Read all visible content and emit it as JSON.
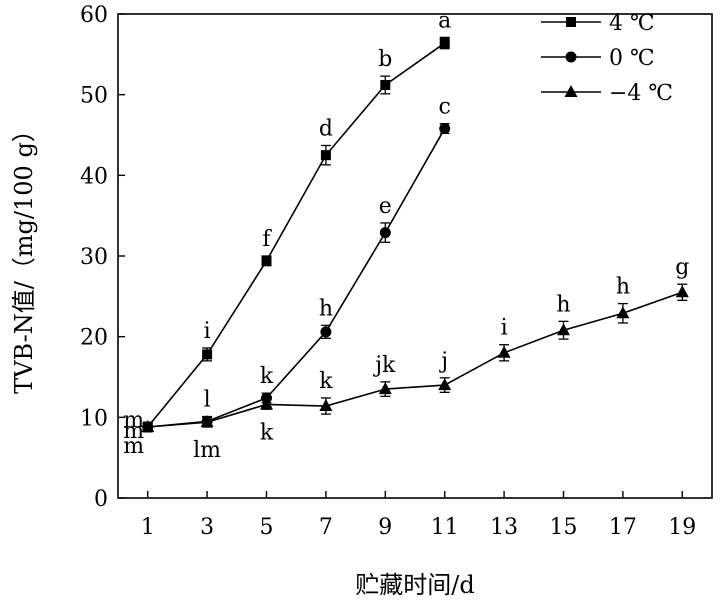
{
  "chart_data": {
    "type": "line",
    "xlabel": "贮藏时间/d",
    "ylabel": "TVB-N值/（mg/100 g）",
    "xlim": [
      0,
      20
    ],
    "ylim": [
      0,
      60
    ],
    "xticks": [
      1,
      3,
      5,
      7,
      9,
      11,
      13,
      15,
      17,
      19
    ],
    "yticks": [
      0,
      10,
      20,
      30,
      40,
      50,
      60
    ],
    "grid": false,
    "legend_position": "top-right",
    "series": [
      {
        "name": "4 ℃",
        "marker": "square",
        "x": [
          1,
          3,
          5,
          7,
          9,
          11
        ],
        "y": [
          8.8,
          17.8,
          29.4,
          42.5,
          51.2,
          56.4
        ],
        "error": [
          0.6,
          0.8,
          0.6,
          1.2,
          1.1,
          0.7
        ],
        "labels": [
          "m",
          "i",
          "f",
          "d",
          "b",
          "a"
        ]
      },
      {
        "name": "0 ℃",
        "marker": "circle",
        "x": [
          1,
          3,
          5,
          7,
          9,
          11
        ],
        "y": [
          8.8,
          9.5,
          12.4,
          20.6,
          32.9,
          45.8
        ],
        "error": [
          0.5,
          0.6,
          0.6,
          0.8,
          1.2,
          0.6
        ],
        "labels": [
          "m",
          "l",
          "k",
          "h",
          "e",
          "c"
        ]
      },
      {
        "name": "−4 ℃",
        "marker": "triangle",
        "x": [
          1,
          3,
          5,
          7,
          9,
          11,
          13,
          15,
          17,
          19
        ],
        "y": [
          8.8,
          9.4,
          11.6,
          11.4,
          13.5,
          14.0,
          18.0,
          20.8,
          22.9,
          25.5
        ],
        "error": [
          0.5,
          0.6,
          0.6,
          1.0,
          0.9,
          0.9,
          1.0,
          1.1,
          1.2,
          1.0
        ],
        "labels": [
          "m",
          "lm",
          "k",
          "k",
          "jk",
          "j",
          "i",
          "h",
          "h",
          "g"
        ]
      }
    ]
  }
}
